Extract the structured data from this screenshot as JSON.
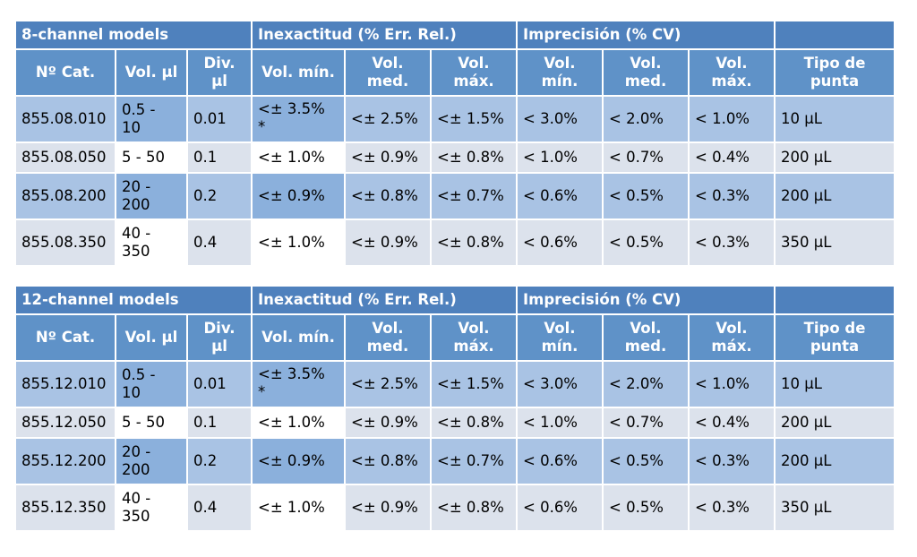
{
  "tables": [
    {
      "group_headers": {
        "models": "8-channel models",
        "inexactitud": "Inexactitud (% Err. Rel.)",
        "imprecision": "Imprecisión (% CV)",
        "blank": ""
      },
      "column_headers": [
        "Nº Cat.",
        "Vol. µl",
        "Div.\nµl",
        "Vol. mín.",
        "Vol.\nmed.",
        "Vol.\nmáx.",
        "Vol.\nmín.",
        "Vol.\nmed.",
        "Vol.\nmáx.",
        "Tipo de\npunta"
      ],
      "rows": [
        [
          "855.08.010",
          "0.5 -\n10",
          "0.01",
          "<± 3.5%\n*",
          "<± 2.5%",
          "<± 1.5%",
          "< 3.0%",
          "< 2.0%",
          "< 1.0%",
          "10 µL"
        ],
        [
          "855.08.050",
          "5 - 50",
          "0.1",
          "<± 1.0%",
          "<± 0.9%",
          "<± 0.8%",
          "< 1.0%",
          "< 0.7%",
          "< 0.4%",
          "200 µL"
        ],
        [
          "855.08.200",
          "20 -\n200",
          "0.2",
          "<± 0.9%",
          "<± 0.8%",
          "<± 0.7%",
          "< 0.6%",
          "< 0.5%",
          "< 0.3%",
          "200 µL"
        ],
        [
          "855.08.350",
          "40 -\n350",
          "0.4",
          "<± 1.0%",
          "<± 0.9%",
          "<± 0.8%",
          "< 0.6%",
          "< 0.5%",
          "< 0.3%",
          "350 µL"
        ]
      ]
    },
    {
      "group_headers": {
        "models": "12-channel models",
        "inexactitud": "Inexactitud (% Err. Rel.)",
        "imprecision": "Imprecisión (% CV)",
        "blank": ""
      },
      "column_headers": [
        "Nº Cat.",
        "Vol. µl",
        "Div.\nµl",
        "Vol. mín.",
        "Vol.\nmed.",
        "Vol.\nmáx.",
        "Vol.\nmín.",
        "Vol.\nmed.",
        "Vol.\nmáx.",
        "Tipo de\npunta"
      ],
      "rows": [
        [
          "855.12.010",
          "0.5 -\n10",
          "0.01",
          "<± 3.5%\n*",
          "<± 2.5%",
          "<± 1.5%",
          "< 3.0%",
          "< 2.0%",
          "< 1.0%",
          "10 µL"
        ],
        [
          "855.12.050",
          "5 - 50",
          "0.1",
          "<± 1.0%",
          "<± 0.9%",
          "<± 0.8%",
          "< 1.0%",
          "< 0.7%",
          "< 0.4%",
          "200 µL"
        ],
        [
          "855.12.200",
          "20 -\n200",
          "0.2",
          "<± 0.9%",
          "<± 0.8%",
          "<± 0.7%",
          "< 0.6%",
          "< 0.5%",
          "< 0.3%",
          "200 µL"
        ],
        [
          "855.12.350",
          "40 -\n350",
          "0.4",
          "<± 1.0%",
          "<± 0.9%",
          "<± 0.8%",
          "< 0.6%",
          "< 0.5%",
          "< 0.3%",
          "350 µL"
        ]
      ]
    }
  ],
  "colors": {
    "header_group": "#4f81bd",
    "header_columns": "#5f92c8",
    "row_odd": "#a9c3e4",
    "row_even": "#dce2ec"
  }
}
